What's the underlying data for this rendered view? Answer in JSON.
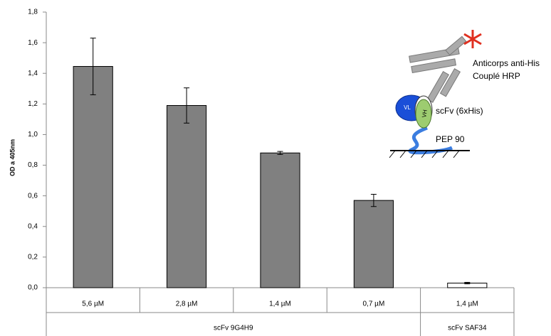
{
  "chart_data": {
    "type": "bar",
    "y_label": "OD a 405nm",
    "categories": [
      "5,6 µM",
      "2,8 µM",
      "1,4 µM",
      "0,7 µM",
      "1,4 µM"
    ],
    "groups": [
      {
        "name": "scFv 9G4H9",
        "size": 4
      },
      {
        "name": "scFv SAF34",
        "size": 1
      }
    ],
    "values": [
      1.445,
      1.19,
      0.88,
      0.57,
      0.03
    ],
    "errors": [
      0.185,
      0.115,
      0.01,
      0.04,
      0.005
    ],
    "colors": [
      "#808080",
      "#808080",
      "#808080",
      "#808080",
      "#ffffff"
    ],
    "ylim": [
      0,
      1.8
    ],
    "yticks": [
      {
        "value": 0,
        "label": "0,0"
      },
      {
        "value": 0.2,
        "label": "0,2"
      },
      {
        "value": 0.4,
        "label": "0,4"
      },
      {
        "value": 0.6,
        "label": "0,6"
      },
      {
        "value": 0.8,
        "label": "0,8"
      },
      {
        "value": 1.0,
        "label": "1,0"
      },
      {
        "value": 1.2,
        "label": "1,2"
      },
      {
        "value": 1.4,
        "label": "1,4"
      },
      {
        "value": 1.6,
        "label": "1,6"
      },
      {
        "value": 1.8,
        "label": "1,8"
      }
    ],
    "annotations": [
      "Anticorps anti-His",
      "Couplé HRP",
      "scFv (6xHis)",
      "PEP 90",
      "VH",
      "VL"
    ]
  }
}
